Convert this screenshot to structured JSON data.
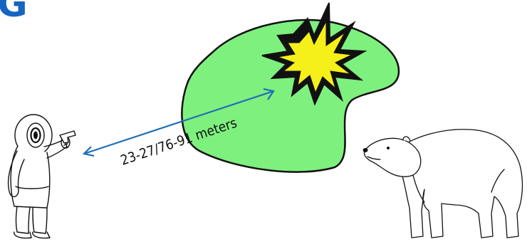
{
  "panel": {
    "letter": "G"
  },
  "distance": {
    "label": "23-27/76-91 meters"
  },
  "colors": {
    "accent": "#1565c0",
    "blast_zone": "#7ef07e",
    "explosion_outer": "#111111",
    "explosion_inner": "#f5ef1a",
    "arrow": "#1f6fb8"
  },
  "figures": {
    "person": {
      "icon": "hunter-with-flare-gun-icon"
    },
    "bear": {
      "icon": "polar-bear-icon"
    },
    "explosion": {
      "icon": "explosion-burst-icon"
    }
  }
}
